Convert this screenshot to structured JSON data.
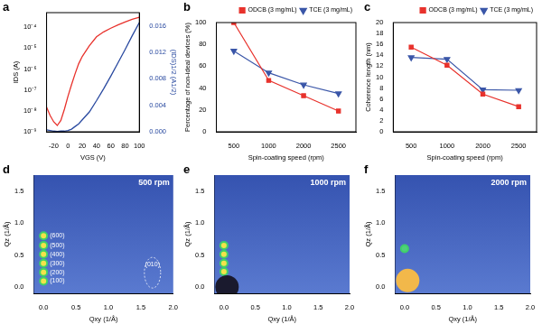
{
  "chart_data": [
    {
      "panel": "a",
      "type": "line",
      "xlabel": "VGS (V)",
      "ylabel": "IDS (A)",
      "y2label": "(IDS)1/2 (A1/2)",
      "x": [
        -30,
        -25,
        -20,
        -15,
        -10,
        -5,
        0,
        5,
        10,
        15,
        20,
        30,
        40,
        50,
        60,
        70,
        80,
        90,
        100
      ],
      "xlim": [
        -30,
        100
      ],
      "xticks": [
        -20,
        0,
        20,
        40,
        60,
        80,
        100
      ],
      "log": "y",
      "ylim": [
        1e-09,
        0.0005
      ],
      "yticks": [
        {
          "value": 1e-09,
          "label": "10⁻⁹"
        },
        {
          "value": 1e-08,
          "label": "10⁻⁸"
        },
        {
          "value": 1e-07,
          "label": "10⁻⁷"
        },
        {
          "value": 1e-06,
          "label": "10⁻⁶"
        },
        {
          "value": 1e-05,
          "label": "10⁻⁵"
        },
        {
          "value": 0.0001,
          "label": "10⁻⁴"
        }
      ],
      "y2lim": [
        0,
        0.018
      ],
      "y2ticks": [
        {
          "value": 0,
          "label": "0.000"
        },
        0.004,
        0.008,
        0.012,
        0.016
      ],
      "grid": false,
      "series": [
        {
          "color": "#e8322c",
          "values": [
            1.5e-08,
            6e-09,
            3e-09,
            2e-09,
            3.5e-09,
            1.2e-08,
            5e-08,
            1.8e-07,
            6e-07,
            1.8e-06,
            4e-06,
            1.3e-05,
            3.5e-05,
            6e-05,
            9e-05,
            0.00013,
            0.00018,
            0.00024,
            0.0003
          ]
        },
        {
          "color": "#2a4aa0",
          "axis": "y2",
          "values": [
            0.0003,
            0.0002,
            0.0001,
            5e-05,
            0.0001,
            0.0001,
            0.0002,
            0.0004,
            0.0008,
            0.0012,
            0.0018,
            0.003,
            0.0047,
            0.0065,
            0.0084,
            0.0104,
            0.0124,
            0.0145,
            0.0165
          ]
        }
      ]
    },
    {
      "panel": "b",
      "type": "line",
      "xlabel": "Spin-coating speed (rpm)",
      "ylabel": "Percentage of non-ideal devices (%)",
      "categories": [
        "500",
        "1000",
        "2000",
        "2500"
      ],
      "ylim": [
        0,
        100
      ],
      "yticks": [
        0,
        20,
        40,
        60,
        80,
        100
      ],
      "grid": false,
      "legend": "upper right",
      "series": [
        {
          "name": "ODCB (3 mg/mL)",
          "color": "#e8322c",
          "marker": "square",
          "values": [
            100,
            47,
            33,
            19
          ]
        },
        {
          "name": "TCE (3 mg/mL)",
          "color": "#3a56a8",
          "marker": "triangle_down",
          "values": [
            74,
            54,
            43,
            35
          ]
        }
      ]
    },
    {
      "panel": "c",
      "type": "line",
      "xlabel": "Spin-coating speed (rpm)",
      "ylabel": "Coherence length (nm)",
      "categories": [
        "500",
        "1000",
        "2000",
        "2500"
      ],
      "ylim": [
        0,
        20
      ],
      "yticks": [
        0,
        2,
        4,
        6,
        8,
        10,
        12,
        14,
        16,
        18,
        20
      ],
      "grid": false,
      "legend": "upper right",
      "series": [
        {
          "name": "ODCB (3 mg/mL)",
          "color": "#e8322c",
          "marker": "square",
          "values": [
            15.5,
            12.2,
            6.9,
            4.6
          ]
        },
        {
          "name": "TCE (3 mg/mL)",
          "color": "#3a56a8",
          "marker": "triangle_down",
          "values": [
            13.6,
            13.3,
            7.7,
            7.6
          ]
        }
      ]
    },
    {
      "panel": "d",
      "type": "scatter",
      "title": "500 rpm",
      "xlabel": "Qxy (1/Å)",
      "ylabel": "Qz (1/Å)",
      "xlim": [
        -0.15,
        2.0
      ],
      "xticks": [
        {
          "value": 0,
          "label": "0.0"
        },
        0.5,
        {
          "value": 1,
          "label": "1.0"
        },
        1.5,
        {
          "value": 2,
          "label": "2.0"
        }
      ],
      "ylim": [
        -0.1,
        1.75
      ],
      "yticks": [
        {
          "value": 0,
          "label": "0.0"
        },
        0.5,
        {
          "value": 1,
          "label": "1.0"
        },
        1.5
      ],
      "grid": false,
      "series": [
        {
          "color": "#f2e34a",
          "marker": "spot",
          "x": [
            0,
            0,
            0,
            0,
            0,
            0
          ],
          "values": [
            0.09,
            0.23,
            0.37,
            0.51,
            0.65,
            0.8
          ],
          "peak_labels": [
            "(100)",
            "(200)",
            "(300)",
            "(400)",
            "(500)",
            "(600)"
          ]
        }
      ],
      "annotations": [
        {
          "text": "(010)",
          "x": 1.68,
          "y": 0.35
        }
      ]
    },
    {
      "panel": "e",
      "type": "scatter",
      "title": "1000 rpm",
      "xlabel": "Qxy (1/Å)",
      "ylabel": "Qz (1/Å)",
      "xlim": [
        -0.15,
        2.0
      ],
      "xticks": [
        {
          "value": 0,
          "label": "0.0"
        },
        0.5,
        {
          "value": 1,
          "label": "1.0"
        },
        1.5,
        {
          "value": 2,
          "label": "2.0"
        }
      ],
      "ylim": [
        -0.1,
        1.75
      ],
      "yticks": [
        {
          "value": 0,
          "label": "0.0"
        },
        0.5,
        {
          "value": 1,
          "label": "1.0"
        },
        1.5
      ],
      "grid": false,
      "series": [
        {
          "color": "#1a1a2e",
          "marker": "blob",
          "x": [
            0.05
          ],
          "values": [
            0.0
          ]
        },
        {
          "color": "#f2e34a",
          "marker": "spot",
          "x": [
            0,
            0,
            0,
            0
          ],
          "values": [
            0.24,
            0.37,
            0.51,
            0.65
          ]
        }
      ]
    },
    {
      "panel": "f",
      "type": "scatter",
      "title": "2000 rpm",
      "xlabel": "Qxy (1/Å)",
      "ylabel": "Qz (1/Å)",
      "xlim": [
        -0.15,
        2.0
      ],
      "xticks": [
        {
          "value": 0,
          "label": "0.0"
        },
        0.5,
        {
          "value": 1,
          "label": "1.0"
        },
        1.5,
        {
          "value": 2,
          "label": "2.0"
        }
      ],
      "ylim": [
        -0.1,
        1.75
      ],
      "yticks": [
        {
          "value": 0,
          "label": "0.0"
        },
        0.5,
        {
          "value": 1,
          "label": "1.0"
        },
        1.5
      ],
      "grid": false,
      "series": [
        {
          "color": "#f2b84a",
          "marker": "blob",
          "x": [
            0.05
          ],
          "values": [
            0.1
          ]
        },
        {
          "color": "#4fd17a",
          "marker": "spot",
          "x": [
            0
          ],
          "values": [
            0.6
          ]
        }
      ]
    }
  ]
}
